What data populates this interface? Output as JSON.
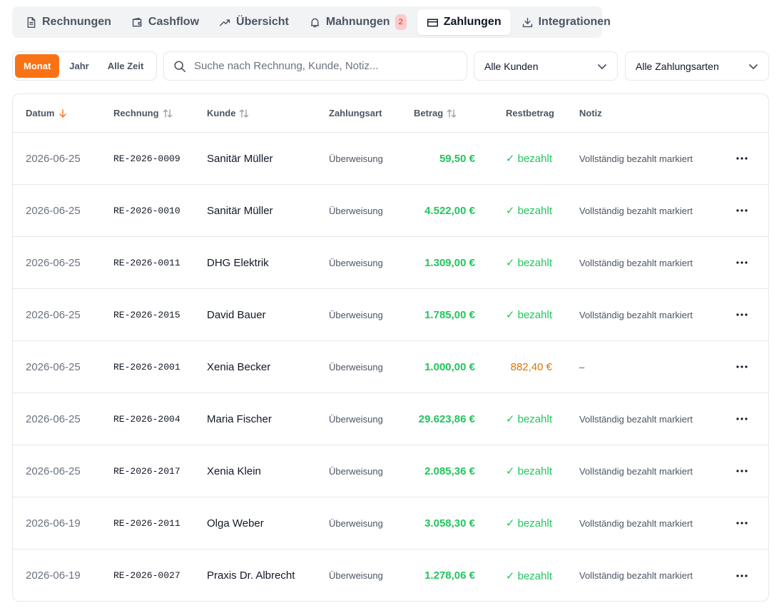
{
  "tabs": {
    "items": [
      {
        "label": "Rechnungen"
      },
      {
        "label": "Cashflow"
      },
      {
        "label": "Übersicht"
      },
      {
        "label": "Mahnungen",
        "badge": "2"
      },
      {
        "label": "Zahlungen",
        "active": true
      },
      {
        "label": "Integrationen"
      }
    ]
  },
  "period_filter": {
    "options": [
      {
        "label": "Monat",
        "active": true
      },
      {
        "label": "Jahr"
      },
      {
        "label": "Alle Zeit"
      }
    ]
  },
  "search": {
    "placeholder": "Suche nach Rechnung, Kunde, Notiz..."
  },
  "filters": [
    "Alle Kunden",
    "Alle Zahlungsarten"
  ],
  "table": {
    "columns": [
      {
        "label": "Datum",
        "sort": "desc"
      },
      {
        "label": "Rechnung",
        "sort": "none"
      },
      {
        "label": "Kunde",
        "sort": "none"
      },
      {
        "label": "Zahlungsart"
      },
      {
        "label": "Betrag",
        "sort": "none"
      },
      {
        "label": "Restbetrag"
      },
      {
        "label": "Notiz"
      }
    ],
    "rows": [
      {
        "date": "2026-06-25",
        "invoice": "RE-2026-0009",
        "customer": "Sanitär Müller",
        "method": "Überweisung",
        "amount": "59,50 €",
        "rest": "✓ bezahlt",
        "paid": true,
        "note": "Vollständig bezahlt markiert"
      },
      {
        "date": "2026-06-25",
        "invoice": "RE-2026-0010",
        "customer": "Sanitär Müller",
        "method": "Überweisung",
        "amount": "4.522,00 €",
        "rest": "✓ bezahlt",
        "paid": true,
        "note": "Vollständig bezahlt markiert"
      },
      {
        "date": "2026-06-25",
        "invoice": "RE-2026-0011",
        "customer": "DHG Elektrik",
        "method": "Überweisung",
        "amount": "1.309,00 €",
        "rest": "✓ bezahlt",
        "paid": true,
        "note": "Vollständig bezahlt markiert"
      },
      {
        "date": "2026-06-25",
        "invoice": "RE-2026-2015",
        "customer": "David Bauer",
        "method": "Überweisung",
        "amount": "1.785,00 €",
        "rest": "✓ bezahlt",
        "paid": true,
        "note": "Vollständig bezahlt markiert"
      },
      {
        "date": "2026-06-25",
        "invoice": "RE-2026-2001",
        "customer": "Xenia Becker",
        "method": "Überweisung",
        "amount": "1.000,00 €",
        "rest": "882,40 €",
        "paid": false,
        "note": "–"
      },
      {
        "date": "2026-06-25",
        "invoice": "RE-2026-2004",
        "customer": "Maria Fischer",
        "method": "Überweisung",
        "amount": "29.623,86 €",
        "rest": "✓ bezahlt",
        "paid": true,
        "note": "Vollständig bezahlt markiert"
      },
      {
        "date": "2026-06-25",
        "invoice": "RE-2026-2017",
        "customer": "Xenia Klein",
        "method": "Überweisung",
        "amount": "2.085,36 €",
        "rest": "✓ bezahlt",
        "paid": true,
        "note": "Vollständig bezahlt markiert"
      },
      {
        "date": "2026-06-19",
        "invoice": "RE-2026-2011",
        "customer": "Olga Weber",
        "method": "Überweisung",
        "amount": "3.058,30 €",
        "rest": "✓ bezahlt",
        "paid": true,
        "note": "Vollständig bezahlt markiert"
      },
      {
        "date": "2026-06-19",
        "invoice": "RE-2026-0027",
        "customer": "Praxis Dr. Albrecht",
        "method": "Überweisung",
        "amount": "1.278,06 €",
        "rest": "✓ bezahlt",
        "paid": true,
        "note": "Vollständig bezahlt markiert"
      }
    ]
  }
}
